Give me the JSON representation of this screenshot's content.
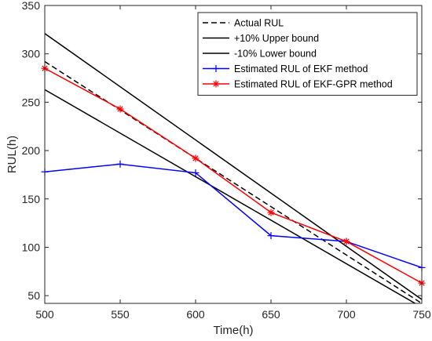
{
  "chart_data": {
    "type": "line",
    "title": "",
    "xlabel": "Time(h)",
    "ylabel": "RUL(h)",
    "xlim": [
      500,
      750
    ],
    "ylim": [
      42,
      350
    ],
    "xticks": [
      500,
      550,
      600,
      650,
      700,
      750
    ],
    "yticks": [
      50,
      100,
      150,
      200,
      250,
      300,
      350
    ],
    "grid": false,
    "legend_position": "top-right",
    "series": [
      {
        "name": "Actual RUL",
        "x": [
          500,
          750
        ],
        "y": [
          292,
          42
        ],
        "color": "#000000",
        "style": "dashed",
        "marker": "none"
      },
      {
        "name": "+10% Upper bound",
        "x": [
          500,
          750
        ],
        "y": [
          321,
          46
        ],
        "color": "#000000",
        "style": "solid",
        "marker": "none"
      },
      {
        "name": "-10% Lower bound",
        "x": [
          500,
          750
        ],
        "y": [
          263,
          38
        ],
        "color": "#000000",
        "style": "solid",
        "marker": "none"
      },
      {
        "name": "Estimated RUL of EKF method",
        "x": [
          500,
          550,
          600,
          650,
          700,
          750
        ],
        "y": [
          178,
          186,
          177,
          112,
          106,
          79
        ],
        "color": "#0000ff",
        "style": "solid",
        "marker": "plus"
      },
      {
        "name": "Estimated RUL of EKF-GPR method",
        "x": [
          500,
          550,
          600,
          650,
          700,
          750
        ],
        "y": [
          285,
          243,
          192,
          136,
          106,
          63
        ],
        "color": "#ff0000",
        "style": "solid",
        "marker": "star"
      }
    ]
  }
}
